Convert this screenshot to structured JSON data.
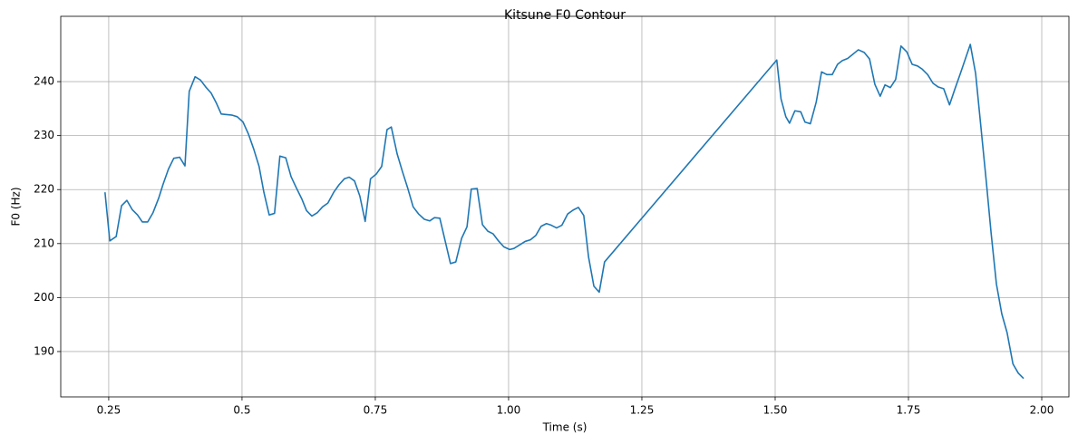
{
  "chart_data": {
    "type": "line",
    "title": "Kitsune F0 Contour",
    "x_label": "Time (s)",
    "y_label": "F0 (Hz)",
    "color": "#1f77b4",
    "grid": true,
    "xlim": [
      0.16,
      2.051
    ],
    "ylim": [
      181.6,
      252.1
    ],
    "xticks": [
      0.25,
      0.5,
      0.75,
      {
        "value": 1,
        "label": "1.00"
      },
      1.25,
      {
        "value": 1.5,
        "label": "1.50"
      },
      1.75,
      {
        "value": 2,
        "label": "2.00"
      }
    ],
    "yticks": [
      190,
      200,
      210,
      220,
      230,
      240
    ],
    "x": [
      0.243,
      0.252,
      0.264,
      0.274,
      0.284,
      0.294,
      0.304,
      0.313,
      0.323,
      0.333,
      0.344,
      0.352,
      0.362,
      0.372,
      0.383,
      0.393,
      0.401,
      0.412,
      0.422,
      0.432,
      0.442,
      0.452,
      0.461,
      0.471,
      0.481,
      0.491,
      0.502,
      0.512,
      0.522,
      0.532,
      0.541,
      0.551,
      0.561,
      0.571,
      0.582,
      0.592,
      0.602,
      0.612,
      0.621,
      0.631,
      0.641,
      0.651,
      0.661,
      0.672,
      0.682,
      0.692,
      0.701,
      0.711,
      0.721,
      0.731,
      0.741,
      0.752,
      0.762,
      0.772,
      0.78,
      0.791,
      0.801,
      0.811,
      0.821,
      0.831,
      0.842,
      0.852,
      0.861,
      0.871,
      0.881,
      0.891,
      0.901,
      0.912,
      0.922,
      0.93,
      0.941,
      0.951,
      0.961,
      0.971,
      0.981,
      0.991,
      1.002,
      1.01,
      1.02,
      1.031,
      1.041,
      1.051,
      1.061,
      1.071,
      1.08,
      1.09,
      1.1,
      1.111,
      1.121,
      1.131,
      1.141,
      1.15,
      1.16,
      1.17,
      1.18,
      1.503,
      1.511,
      1.52,
      1.527,
      1.537,
      1.548,
      1.556,
      1.566,
      1.577,
      1.587,
      1.597,
      1.607,
      1.617,
      1.626,
      1.636,
      1.646,
      1.656,
      1.667,
      1.677,
      1.687,
      1.697,
      1.706,
      1.716,
      1.726,
      1.736,
      1.747,
      1.757,
      1.767,
      1.776,
      1.786,
      1.796,
      1.806,
      1.816,
      1.827,
      1.837,
      1.847,
      1.855,
      1.866,
      1.876,
      1.886,
      1.896,
      1.905,
      1.915,
      1.925,
      1.935,
      1.946,
      1.956,
      1.966
    ],
    "values": [
      219.5,
      210.5,
      211.3,
      217,
      218,
      216.3,
      215.3,
      214,
      214,
      215.7,
      218.5,
      221,
      223.8,
      225.8,
      226,
      224.4,
      238.2,
      240.9,
      240.3,
      239,
      237.9,
      236,
      234,
      233.9,
      233.8,
      233.5,
      232.5,
      230.3,
      227.5,
      224.3,
      219.5,
      215.3,
      215.6,
      226.2,
      225.9,
      222.4,
      220.3,
      218.3,
      216.1,
      215.1,
      215.7,
      216.8,
      217.5,
      219.5,
      220.9,
      222,
      222.3,
      221.6,
      218.8,
      214.1,
      222,
      222.9,
      224.3,
      231.1,
      231.6,
      226.6,
      223.3,
      220.2,
      216.8,
      215.5,
      214.5,
      214.2,
      214.8,
      214.7,
      210.5,
      206.3,
      206.6,
      211,
      213.1,
      220.1,
      220.2,
      213.5,
      212.3,
      211.8,
      210.5,
      209.4,
      208.9,
      209.1,
      209.7,
      210.4,
      210.7,
      211.5,
      213.2,
      213.7,
      213.4,
      212.9,
      213.4,
      215.5,
      216.2,
      216.7,
      215.2,
      207.5,
      202.1,
      201,
      206.6,
      244,
      236.8,
      233.5,
      232.3,
      234.6,
      234.4,
      232.5,
      232.2,
      236.2,
      241.8,
      241.3,
      241.3,
      243.2,
      243.9,
      244.3,
      245.1,
      245.9,
      245.4,
      244.2,
      239.5,
      237.3,
      239.4,
      238.9,
      240.4,
      246.6,
      245.5,
      243.2,
      242.9,
      242.3,
      241.3,
      239.7,
      239,
      238.7,
      235.7,
      238.6,
      241.4,
      243.7,
      246.9,
      241.5,
      231.5,
      221.5,
      212,
      202.5,
      197,
      193.5,
      187.7,
      186,
      185
    ]
  }
}
